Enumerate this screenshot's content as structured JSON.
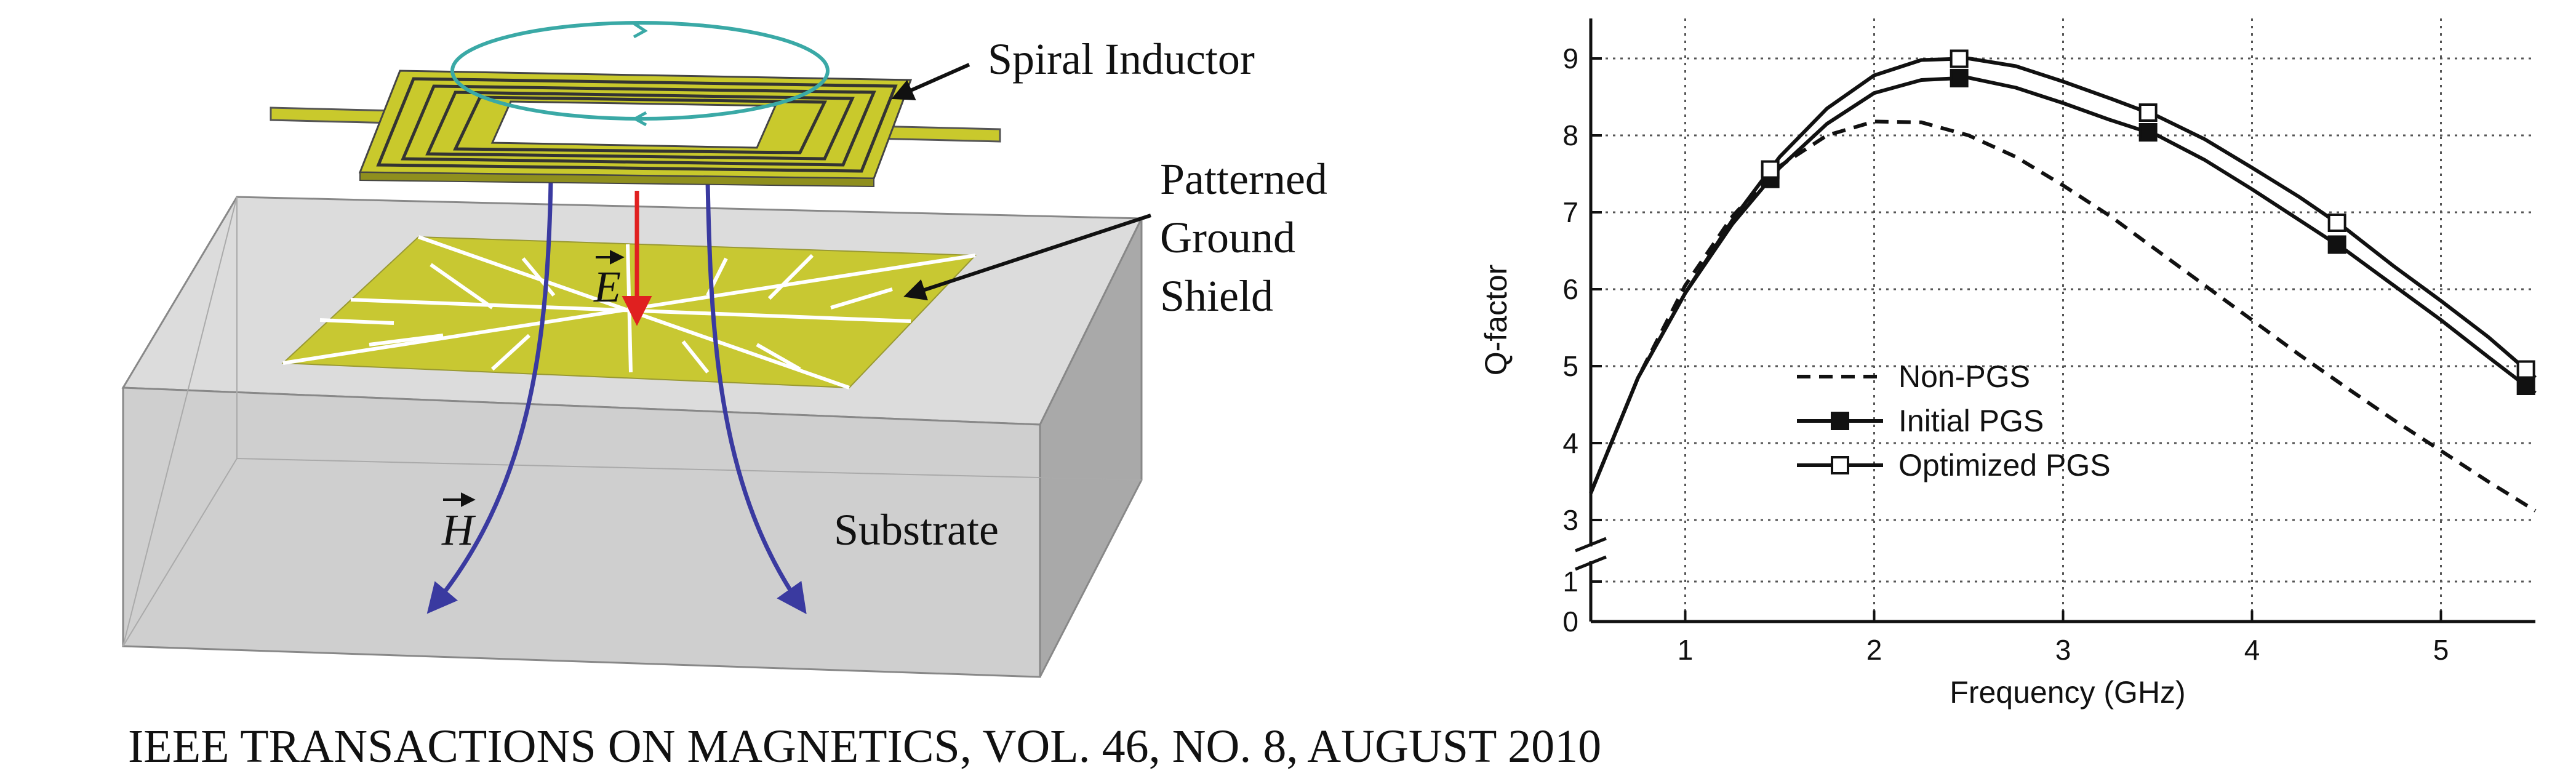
{
  "diagram": {
    "labels": {
      "spiral_inductor": "Spiral Inductor",
      "pgs_line1": "Patterned",
      "pgs_line2": "Ground",
      "pgs_line3": "Shield",
      "substrate": "Substrate",
      "e_field": "E",
      "h_field": "H"
    },
    "colors": {
      "inductor": "#c9c92c",
      "shield": "#c8c832",
      "substrate": "#d2d2d2",
      "h_field": "#3a3aa0",
      "e_field": "#e02020",
      "current_loop": "#3aa9a6"
    }
  },
  "chart_data": {
    "type": "line",
    "title": "",
    "xlabel": "Frequency (GHz)",
    "ylabel": "Q-factor",
    "xlim": [
      0.5,
      5.5
    ],
    "ylim": [
      0,
      9.5
    ],
    "axis_break": [
      1.2,
      2.7
    ],
    "x_ticks": [
      "1",
      "2",
      "3",
      "4",
      "5"
    ],
    "y_ticks": [
      "0",
      "1",
      "3",
      "4",
      "5",
      "6",
      "7",
      "8",
      "9"
    ],
    "grid": true,
    "legend_position": "center-left",
    "series": [
      {
        "name": "Non-PGS",
        "style": "dashed",
        "marker": "none",
        "x": [
          0.5,
          0.75,
          1.0,
          1.25,
          1.5,
          1.75,
          2.0,
          2.25,
          2.5,
          2.75,
          3.0,
          3.25,
          3.5,
          3.75,
          4.0,
          4.25,
          4.5,
          4.75,
          5.0,
          5.25,
          5.5
        ],
        "y": [
          3.35,
          4.85,
          6.05,
          6.95,
          7.6,
          8.0,
          8.18,
          8.17,
          8.0,
          7.72,
          7.35,
          6.95,
          6.5,
          6.05,
          5.6,
          5.15,
          4.72,
          4.3,
          3.9,
          3.5,
          3.12
        ]
      },
      {
        "name": "Initial PGS",
        "style": "solid",
        "marker": "filled-square",
        "marker_x": [
          1.45,
          2.45,
          3.45,
          4.45,
          5.45
        ],
        "x": [
          0.5,
          0.75,
          1.0,
          1.25,
          1.5,
          1.75,
          2.0,
          2.25,
          2.5,
          2.75,
          3.0,
          3.25,
          3.5,
          3.75,
          4.0,
          4.25,
          4.5,
          4.75,
          5.0,
          5.25,
          5.5
        ],
        "y": [
          3.35,
          4.85,
          5.95,
          6.85,
          7.58,
          8.15,
          8.55,
          8.72,
          8.75,
          8.62,
          8.42,
          8.2,
          8.0,
          7.68,
          7.3,
          6.9,
          6.5,
          6.05,
          5.6,
          5.12,
          4.65
        ]
      },
      {
        "name": "Optimized PGS",
        "style": "solid",
        "marker": "open-square",
        "marker_x": [
          1.45,
          2.45,
          3.45,
          4.45,
          5.45
        ],
        "x": [
          0.5,
          0.75,
          1.0,
          1.25,
          1.5,
          1.75,
          2.0,
          2.25,
          2.5,
          2.75,
          3.0,
          3.25,
          3.5,
          3.75,
          4.0,
          4.25,
          4.5,
          4.75,
          5.0,
          5.25,
          5.5
        ],
        "y": [
          3.35,
          4.85,
          5.95,
          6.9,
          7.72,
          8.35,
          8.78,
          8.98,
          9.0,
          8.9,
          8.7,
          8.48,
          8.25,
          7.95,
          7.58,
          7.2,
          6.78,
          6.3,
          5.85,
          5.38,
          4.85
        ]
      }
    ]
  },
  "citation": "IEEE TRANSACTIONS ON MAGNETICS, VOL. 46, NO. 8, AUGUST 2010"
}
